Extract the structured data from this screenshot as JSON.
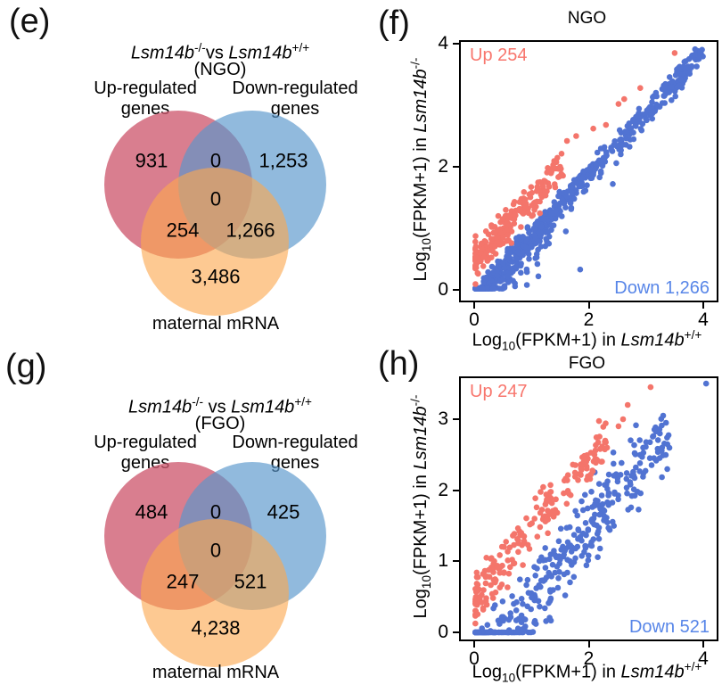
{
  "figure": {
    "background": "#ffffff",
    "text_color": "#000000"
  },
  "chart_data": [
    {
      "id": "venn-ngo",
      "type": "venn",
      "panel_letter": "(e)",
      "title": {
        "gene_ko": "Lsm14b",
        "sup_ko": "-/-",
        "separator": "vs ",
        "gene_wt": "Lsm14b",
        "sup_wt": "+/+",
        "context": "(NGO)"
      },
      "set_labels": {
        "up": "Up-regulated\ngenes",
        "down": "Down-regulated\ngenes",
        "maternal": "maternal mRNA"
      },
      "values": {
        "up_only": "931",
        "up_down": "0",
        "down_only": "1,253",
        "center": "0",
        "up_maternal": "254",
        "down_maternal": "1,266",
        "maternal_only": "3,486"
      },
      "colors": {
        "up": "#CE5A70",
        "down": "#5897CC",
        "maternal": "#FCA84F"
      }
    },
    {
      "id": "scatter-ngo",
      "type": "scatter",
      "panel_letter": "(f)",
      "title": "NGO",
      "x_label": {
        "prefix": "Log",
        "sub": "10",
        "mid": "(FPKM+1) in ",
        "gene": "Lsm14b",
        "sup": "+/+"
      },
      "y_label": {
        "prefix": "Log",
        "sub": "10",
        "mid": "(FPKM+1) in ",
        "gene": "Lsm14b",
        "sup": "-/-"
      },
      "x_ticks": [
        "0",
        "2",
        "4"
      ],
      "x_tick_vals": [
        0,
        2,
        4
      ],
      "y_ticks": [
        "0",
        "2",
        "4"
      ],
      "y_tick_vals": [
        0,
        2,
        4
      ],
      "xlim": [
        -0.234,
        4.234
      ],
      "ylim": [
        -0.174,
        4.029
      ],
      "grid": false,
      "legend": "none",
      "annotations": {
        "up": {
          "text": "Up 254",
          "color": "#F8766D"
        },
        "down": {
          "text": "Down 1,266",
          "color": "#5886E8"
        }
      },
      "series": [
        {
          "name": "down-regulated",
          "count": 1266,
          "color": "#5173D2",
          "clouds": [
            {
              "seed": 29,
              "count": 520,
              "x_max": 4.0,
              "x_pow": 1.3,
              "offset": -0.13,
              "noise": 0.1,
              "y_min": 0.02
            },
            {
              "seed": 53,
              "count": 120,
              "x_max": 1.35,
              "x_pow": 1.1,
              "offset": -0.32,
              "noise": 0.18,
              "y_min": 0.02
            }
          ],
          "extra": [
            [
              1.85,
              0.33
            ],
            [
              2.42,
              1.72
            ],
            [
              1.6,
              0.95
            ],
            [
              3.95,
              3.88
            ],
            [
              3.7,
              3.6
            ],
            [
              0.92,
              0.08
            ],
            [
              1.12,
              0.22
            ],
            [
              3.45,
              3.3
            ],
            [
              3.6,
              3.42
            ]
          ]
        },
        {
          "name": "up-regulated",
          "count": 254,
          "color": "#F4756B",
          "clouds": [
            {
              "seed": 11,
              "count": 200,
              "x_max": 1.55,
              "x_pow": 1.6,
              "offset": 0.45,
              "noise": 0.14,
              "y_min": 0.05
            }
          ],
          "extra": [
            [
              1.62,
              2.42
            ],
            [
              1.78,
              2.5
            ],
            [
              2.08,
              2.62
            ],
            [
              2.3,
              2.68
            ],
            [
              2.52,
              3.02
            ],
            [
              2.62,
              3.1
            ],
            [
              2.9,
              3.28
            ],
            [
              3.5,
              3.85
            ],
            [
              1.35,
              1.92
            ],
            [
              1.5,
              2.0
            ],
            [
              0.42,
              1.2
            ],
            [
              0.3,
              1.05
            ],
            [
              0.55,
              1.3
            ],
            [
              1.15,
              1.75
            ]
          ]
        }
      ]
    },
    {
      "id": "venn-fgo",
      "type": "venn",
      "panel_letter": "(g)",
      "title": {
        "gene_ko": "Lsm14b",
        "sup_ko": "-/-",
        "separator": " vs ",
        "gene_wt": "Lsm14b",
        "sup_wt": "+/+",
        "context": "(FGO)"
      },
      "set_labels": {
        "up": "Up-regulated\ngenes",
        "down": "Down-regulated\ngenes",
        "maternal": "maternal mRNA"
      },
      "values": {
        "up_only": "484",
        "up_down": "0",
        "down_only": "425",
        "center": "0",
        "up_maternal": "247",
        "down_maternal": "521",
        "maternal_only": "4,238"
      },
      "colors": {
        "up": "#CE5A70",
        "down": "#5897CC",
        "maternal": "#FCA84F"
      }
    },
    {
      "id": "scatter-fgo",
      "type": "scatter",
      "panel_letter": "(h)",
      "title": "FGO",
      "x_label": {
        "prefix": "Log",
        "sub": "10",
        "mid": "(FPKM+1) in ",
        "gene": "Lsm14b",
        "sup": "+/+"
      },
      "y_label": {
        "prefix": "Log",
        "sub": "10",
        "mid": "(FPKM+1) in ",
        "gene": "Lsm14b",
        "sup": "-/-"
      },
      "x_ticks": [
        "0",
        "2",
        "4"
      ],
      "x_tick_vals": [
        0,
        2,
        4
      ],
      "y_ticks": [
        "0",
        "1",
        "2",
        "3"
      ],
      "y_tick_vals": [
        0,
        1,
        2,
        3
      ],
      "xlim": [
        -0.234,
        4.234
      ],
      "ylim": [
        -0.1,
        3.577
      ],
      "grid": false,
      "legend": "none",
      "annotations": {
        "up": {
          "text": "Up 247",
          "color": "#F8766D"
        },
        "down": {
          "text": "Down 521",
          "color": "#5886E8"
        }
      },
      "series": [
        {
          "name": "down-regulated",
          "count": 521,
          "color": "#5173D2",
          "clouds": [
            {
              "seed": 71,
              "count": 360,
              "x_max": 3.45,
              "x_pow": 1.3,
              "offset": -0.55,
              "noise": 0.27,
              "y_min": 0.0
            }
          ],
          "extra": [
            [
              4.05,
              3.5
            ],
            [
              3.3,
              3.05
            ],
            [
              3.2,
              2.85
            ],
            [
              2.95,
              2.6
            ],
            [
              3.35,
              2.95
            ]
          ]
        },
        {
          "name": "up-regulated",
          "count": 247,
          "color": "#F4756B",
          "clouds": [
            {
              "seed": 97,
              "count": 205,
              "x_max": 2.3,
              "x_pow": 1.5,
              "offset": 0.45,
              "noise": 0.16,
              "y_min": 0.05
            }
          ],
          "extra": [
            [
              3.08,
              3.45
            ],
            [
              2.6,
              3.0
            ],
            [
              2.68,
              3.2
            ],
            [
              2.52,
              2.9
            ],
            [
              2.2,
              2.58
            ],
            [
              2.32,
              2.6
            ],
            [
              2.1,
              2.5
            ]
          ]
        }
      ]
    }
  ]
}
